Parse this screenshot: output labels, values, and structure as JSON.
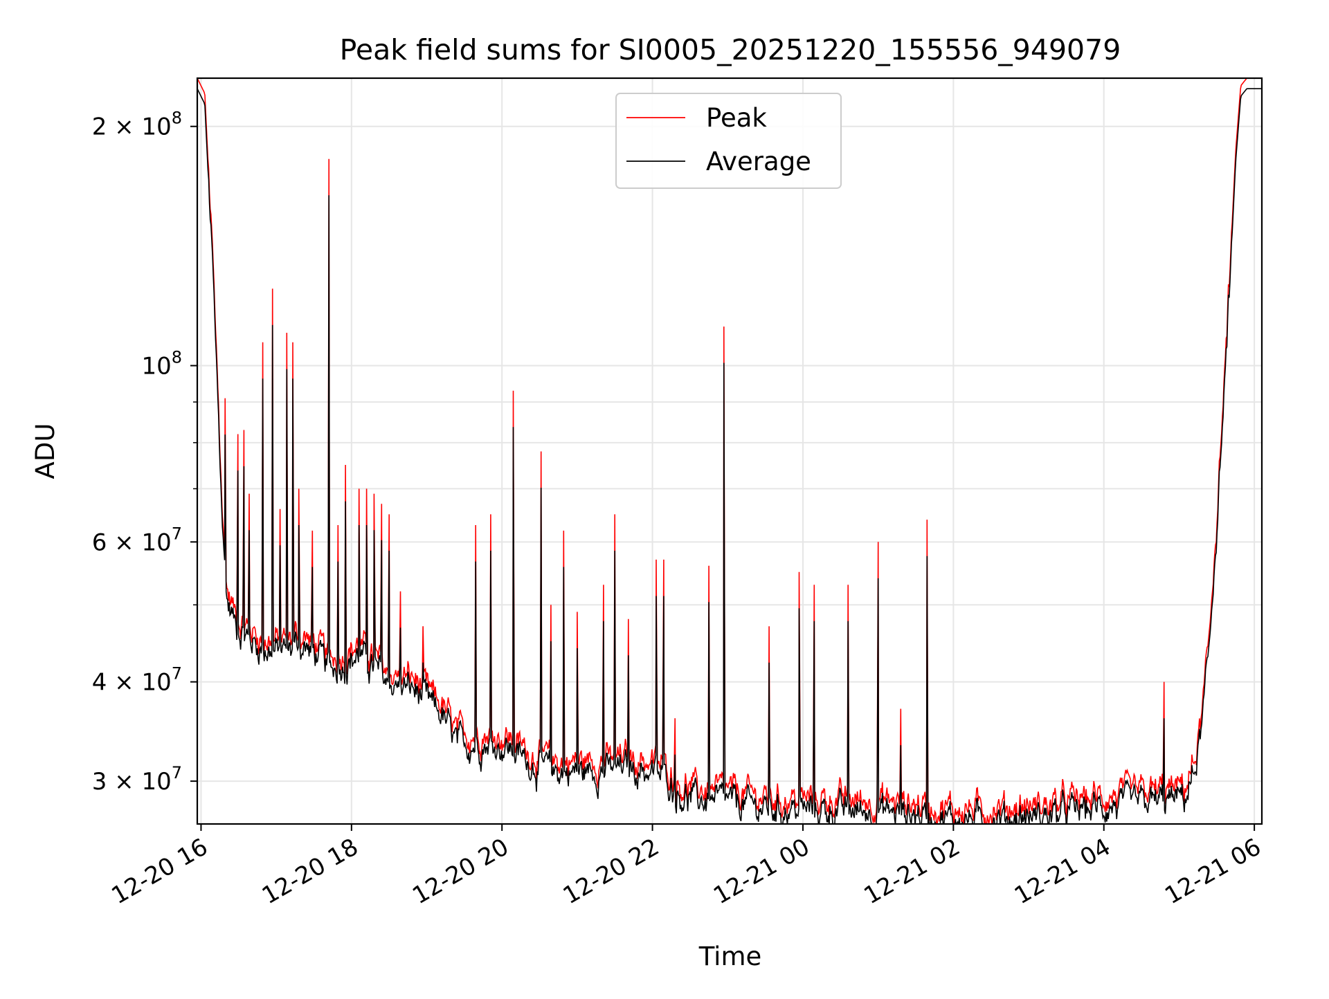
{
  "chart_data": {
    "type": "line",
    "title": "Peak field sums for SI0005_20251220_155556_949079",
    "xlabel": "Time",
    "ylabel": "ADU",
    "yscale": "log",
    "ylim": [
      26500000,
      230000000
    ],
    "xlim_hours": [
      15.95,
      30.1
    ],
    "grid": true,
    "legend_position": "upper-center",
    "x_ticks": [
      {
        "hour": 16,
        "label": "12-20 16"
      },
      {
        "hour": 18,
        "label": "12-20 18"
      },
      {
        "hour": 20,
        "label": "12-20 20"
      },
      {
        "hour": 22,
        "label": "12-20 22"
      },
      {
        "hour": 24,
        "label": "12-21 00"
      },
      {
        "hour": 26,
        "label": "12-21 02"
      },
      {
        "hour": 28,
        "label": "12-21 04"
      },
      {
        "hour": 30,
        "label": "12-21 06"
      }
    ],
    "y_major_ticks": [
      {
        "value": 30000000,
        "mantissa": "3",
        "exp": "7"
      },
      {
        "value": 40000000,
        "mantissa": "4",
        "exp": "7"
      },
      {
        "value": 60000000,
        "mantissa": "6",
        "exp": "7"
      },
      {
        "value": 100000000,
        "mantissa": "",
        "exp": "8"
      },
      {
        "value": 200000000,
        "mantissa": "2",
        "exp": "8"
      }
    ],
    "y_minor_grid": [
      50000000,
      70000000,
      80000000,
      90000000
    ],
    "series": [
      {
        "name": "Peak",
        "color": "#ff0000",
        "baseline": [
          [
            15.95,
            230000000
          ],
          [
            16.05,
            220000000
          ],
          [
            16.1,
            175000000
          ],
          [
            16.15,
            140000000
          ],
          [
            16.2,
            105000000
          ],
          [
            16.25,
            80000000
          ],
          [
            16.3,
            60000000
          ],
          [
            16.35,
            52000000
          ],
          [
            16.45,
            49000000
          ],
          [
            16.6,
            47000000
          ],
          [
            16.8,
            45500000
          ],
          [
            17.0,
            45000000
          ],
          [
            17.3,
            46000000
          ],
          [
            17.55,
            44500000
          ],
          [
            17.7,
            43000000
          ],
          [
            17.9,
            43500000
          ],
          [
            18.1,
            44500000
          ],
          [
            18.3,
            43000000
          ],
          [
            18.5,
            41000000
          ],
          [
            18.8,
            40500000
          ],
          [
            19.0,
            39000000
          ],
          [
            19.2,
            37500000
          ],
          [
            19.4,
            34500000
          ],
          [
            19.6,
            34500000
          ],
          [
            19.9,
            34500000
          ],
          [
            20.1,
            34000000
          ],
          [
            20.3,
            33000000
          ],
          [
            20.5,
            32200000
          ],
          [
            20.8,
            31800000
          ],
          [
            21.1,
            31800000
          ],
          [
            21.4,
            32000000
          ],
          [
            21.7,
            32200000
          ],
          [
            22.0,
            31700000
          ],
          [
            22.2,
            31200000
          ],
          [
            22.35,
            29800000
          ],
          [
            22.6,
            29300000
          ],
          [
            22.9,
            29200000
          ],
          [
            23.2,
            29000000
          ],
          [
            23.5,
            28600000
          ],
          [
            23.8,
            28500000
          ],
          [
            24.2,
            28500000
          ],
          [
            24.6,
            28400000
          ],
          [
            25.0,
            28400000
          ],
          [
            25.4,
            28200000
          ],
          [
            25.7,
            28000000
          ],
          [
            26.0,
            27700000
          ],
          [
            26.3,
            27700000
          ],
          [
            26.6,
            27800000
          ],
          [
            27.0,
            27900000
          ],
          [
            27.3,
            28100000
          ],
          [
            27.6,
            28400000
          ],
          [
            28.0,
            28700000
          ],
          [
            28.4,
            29000000
          ],
          [
            28.8,
            29200000
          ],
          [
            29.0,
            29400000
          ],
          [
            29.1,
            29800000
          ],
          [
            29.2,
            31500000
          ],
          [
            29.3,
            36000000
          ],
          [
            29.4,
            45000000
          ],
          [
            29.5,
            65000000
          ],
          [
            29.6,
            95000000
          ],
          [
            29.68,
            135000000
          ],
          [
            29.75,
            185000000
          ],
          [
            29.82,
            225000000
          ],
          [
            29.9,
            230000000
          ],
          [
            30.1,
            230000000
          ]
        ],
        "spikes": [
          [
            16.32,
            91000000
          ],
          [
            16.49,
            82000000
          ],
          [
            16.57,
            83000000
          ],
          [
            16.64,
            69000000
          ],
          [
            16.82,
            107000000
          ],
          [
            16.95,
            125000000
          ],
          [
            17.05,
            66000000
          ],
          [
            17.14,
            110000000
          ],
          [
            17.22,
            107000000
          ],
          [
            17.3,
            70000000
          ],
          [
            17.48,
            62000000
          ],
          [
            17.7,
            182000000
          ],
          [
            17.82,
            63000000
          ],
          [
            17.92,
            75000000
          ],
          [
            18.1,
            70000000
          ],
          [
            18.2,
            70000000
          ],
          [
            18.3,
            69000000
          ],
          [
            18.4,
            67000000
          ],
          [
            18.5,
            65000000
          ],
          [
            18.65,
            52000000
          ],
          [
            18.95,
            47000000
          ],
          [
            19.65,
            63000000
          ],
          [
            19.85,
            65000000
          ],
          [
            20.15,
            93000000
          ],
          [
            20.52,
            78000000
          ],
          [
            20.65,
            50000000
          ],
          [
            20.82,
            62000000
          ],
          [
            21.0,
            49000000
          ],
          [
            21.35,
            53000000
          ],
          [
            21.5,
            65000000
          ],
          [
            21.68,
            48000000
          ],
          [
            22.05,
            57000000
          ],
          [
            22.15,
            57000000
          ],
          [
            22.3,
            36000000
          ],
          [
            22.75,
            56000000
          ],
          [
            22.95,
            112000000
          ],
          [
            23.55,
            47000000
          ],
          [
            23.95,
            55000000
          ],
          [
            24.15,
            53000000
          ],
          [
            24.6,
            53000000
          ],
          [
            25.0,
            60000000
          ],
          [
            25.3,
            37000000
          ],
          [
            25.65,
            64000000
          ],
          [
            28.8,
            40000000
          ]
        ]
      },
      {
        "name": "Average",
        "color": "#000000",
        "scale": 0.97,
        "spike_scale": 0.9
      }
    ]
  }
}
